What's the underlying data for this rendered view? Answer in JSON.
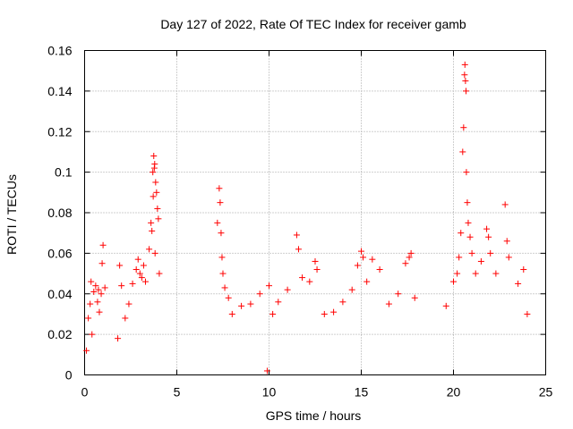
{
  "chart_data": {
    "type": "scatter",
    "title": "Day 127 of 2022, Rate Of TEC Index for receiver gamb",
    "xlabel": "GPS time / hours",
    "ylabel": "ROTI / TECUs",
    "xlim": [
      0,
      25
    ],
    "ylim": [
      0,
      0.16
    ],
    "x_ticks": [
      "0",
      "5",
      "10",
      "15",
      "20",
      "25"
    ],
    "y_ticks": [
      "0",
      "0.02",
      "0.04",
      "0.06",
      "0.08",
      "0.1",
      "0.12",
      "0.14",
      "0.16"
    ],
    "grid": true,
    "marker": "+",
    "color": "#ff0000",
    "series": [
      {
        "points": [
          [
            0.1,
            0.012
          ],
          [
            0.2,
            0.028
          ],
          [
            0.3,
            0.035
          ],
          [
            0.4,
            0.02
          ],
          [
            0.5,
            0.041
          ],
          [
            0.6,
            0.044
          ],
          [
            0.7,
            0.036
          ],
          [
            0.8,
            0.031
          ],
          [
            0.9,
            0.04
          ],
          [
            1.0,
            0.064
          ],
          [
            1.1,
            0.043
          ],
          [
            0.35,
            0.046
          ],
          [
            0.75,
            0.042
          ],
          [
            0.95,
            0.055
          ],
          [
            1.8,
            0.018
          ],
          [
            1.9,
            0.054
          ],
          [
            2.0,
            0.044
          ],
          [
            2.2,
            0.028
          ],
          [
            2.4,
            0.035
          ],
          [
            2.6,
            0.045
          ],
          [
            2.8,
            0.052
          ],
          [
            2.9,
            0.057
          ],
          [
            3.0,
            0.05
          ],
          [
            3.1,
            0.048
          ],
          [
            3.2,
            0.054
          ],
          [
            3.3,
            0.046
          ],
          [
            3.5,
            0.062
          ],
          [
            3.6,
            0.075
          ],
          [
            3.7,
            0.1
          ],
          [
            3.75,
            0.108
          ],
          [
            3.8,
            0.104
          ],
          [
            3.85,
            0.095
          ],
          [
            3.9,
            0.09
          ],
          [
            3.95,
            0.082
          ],
          [
            4.0,
            0.077
          ],
          [
            4.05,
            0.05
          ],
          [
            3.65,
            0.071
          ],
          [
            3.72,
            0.088
          ],
          [
            3.78,
            0.102
          ],
          [
            3.82,
            0.06
          ],
          [
            7.2,
            0.075
          ],
          [
            7.3,
            0.092
          ],
          [
            7.35,
            0.085
          ],
          [
            7.4,
            0.07
          ],
          [
            7.45,
            0.058
          ],
          [
            7.5,
            0.05
          ],
          [
            7.6,
            0.043
          ],
          [
            7.8,
            0.038
          ],
          [
            8.0,
            0.03
          ],
          [
            8.5,
            0.034
          ],
          [
            9.0,
            0.035
          ],
          [
            9.5,
            0.04
          ],
          [
            9.9,
            0.002
          ],
          [
            10.0,
            0.044
          ],
          [
            10.2,
            0.03
          ],
          [
            10.5,
            0.036
          ],
          [
            11.0,
            0.042
          ],
          [
            11.5,
            0.069
          ],
          [
            11.6,
            0.062
          ],
          [
            11.8,
            0.048
          ],
          [
            12.2,
            0.046
          ],
          [
            12.5,
            0.056
          ],
          [
            12.6,
            0.052
          ],
          [
            13.0,
            0.03
          ],
          [
            13.5,
            0.031
          ],
          [
            14.0,
            0.036
          ],
          [
            14.5,
            0.042
          ],
          [
            14.8,
            0.054
          ],
          [
            15.0,
            0.061
          ],
          [
            15.1,
            0.058
          ],
          [
            15.3,
            0.046
          ],
          [
            15.6,
            0.057
          ],
          [
            16.0,
            0.052
          ],
          [
            16.5,
            0.035
          ],
          [
            17.0,
            0.04
          ],
          [
            17.4,
            0.055
          ],
          [
            17.6,
            0.058
          ],
          [
            17.7,
            0.06
          ],
          [
            17.9,
            0.038
          ],
          [
            19.6,
            0.034
          ],
          [
            20.0,
            0.046
          ],
          [
            20.2,
            0.05
          ],
          [
            20.3,
            0.058
          ],
          [
            20.4,
            0.07
          ],
          [
            20.5,
            0.11
          ],
          [
            20.55,
            0.122
          ],
          [
            20.6,
            0.148
          ],
          [
            20.62,
            0.153
          ],
          [
            20.65,
            0.145
          ],
          [
            20.68,
            0.14
          ],
          [
            20.7,
            0.1
          ],
          [
            20.75,
            0.085
          ],
          [
            20.8,
            0.075
          ],
          [
            20.9,
            0.068
          ],
          [
            21.0,
            0.06
          ],
          [
            21.2,
            0.05
          ],
          [
            21.5,
            0.056
          ],
          [
            21.8,
            0.072
          ],
          [
            21.9,
            0.068
          ],
          [
            22.0,
            0.06
          ],
          [
            22.3,
            0.05
          ],
          [
            22.8,
            0.084
          ],
          [
            22.9,
            0.066
          ],
          [
            23.0,
            0.058
          ],
          [
            23.5,
            0.045
          ],
          [
            23.8,
            0.052
          ],
          [
            24.0,
            0.03
          ]
        ]
      }
    ]
  }
}
